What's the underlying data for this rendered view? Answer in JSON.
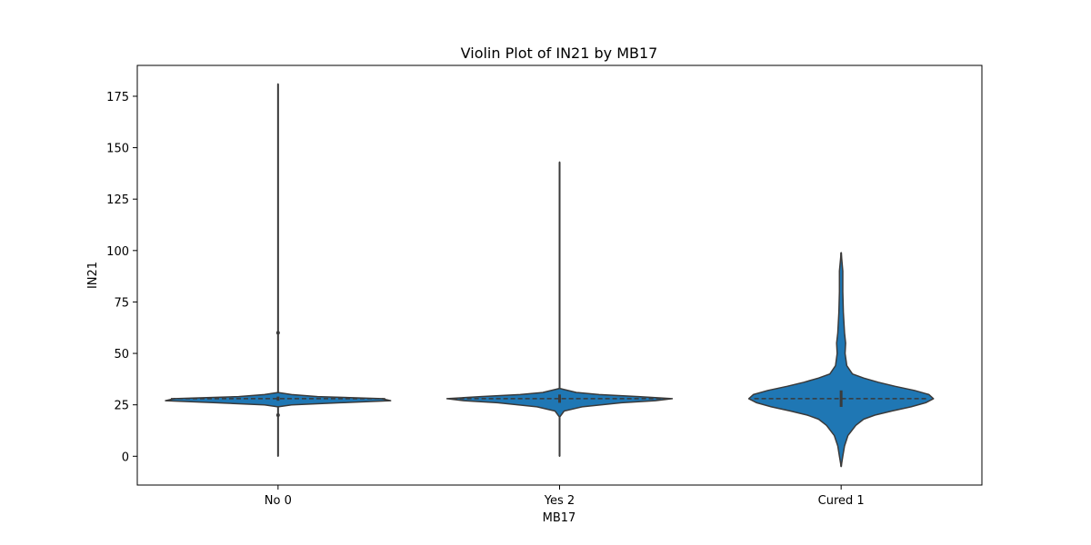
{
  "chart_data": {
    "type": "violin",
    "title": "Violin Plot of IN21 by MB17",
    "xlabel": "MB17",
    "ylabel": "IN21",
    "categories": [
      "No 0",
      "Yes 2",
      "Cured 1"
    ],
    "y_ticks": [
      0,
      25,
      50,
      75,
      100,
      125,
      150,
      175
    ],
    "ylim": [
      -14,
      190
    ],
    "grid": false,
    "fill_color": "#1f77b4",
    "edge_color": "#3a3a3a",
    "violins": [
      {
        "category": "No 0",
        "min": 0,
        "max": 181,
        "median": 28,
        "box": [
          27,
          29
        ],
        "outliers_shown": [
          20,
          60
        ],
        "density_profile": [
          [
            0,
            0.0
          ],
          [
            20,
            0.0
          ],
          [
            24,
            0.0
          ],
          [
            25,
            0.12
          ],
          [
            26,
            0.55
          ],
          [
            27,
            1.0
          ],
          [
            28,
            0.92
          ],
          [
            29,
            0.35
          ],
          [
            30,
            0.12
          ],
          [
            31,
            0.0
          ],
          [
            60,
            0.0
          ],
          [
            181,
            0.0
          ]
        ]
      },
      {
        "category": "Yes 2",
        "min": 0,
        "max": 143,
        "median": 28,
        "box": [
          26,
          30
        ],
        "outliers_shown": [],
        "density_profile": [
          [
            0,
            0.0
          ],
          [
            19,
            0.0
          ],
          [
            22,
            0.04
          ],
          [
            24,
            0.2
          ],
          [
            26,
            0.55
          ],
          [
            27,
            0.85
          ],
          [
            28,
            1.0
          ],
          [
            29,
            0.7
          ],
          [
            30,
            0.35
          ],
          [
            31,
            0.15
          ],
          [
            33,
            0.0
          ],
          [
            143,
            0.0
          ]
        ]
      },
      {
        "category": "Cured 1",
        "min": -5,
        "max": 99,
        "median": 28,
        "box": [
          24,
          32
        ],
        "outliers_shown": [],
        "density_profile": [
          [
            -5,
            0.0
          ],
          [
            0,
            0.015
          ],
          [
            5,
            0.03
          ],
          [
            10,
            0.06
          ],
          [
            15,
            0.13
          ],
          [
            18,
            0.2
          ],
          [
            20,
            0.3
          ],
          [
            22,
            0.45
          ],
          [
            24,
            0.62
          ],
          [
            26,
            0.75
          ],
          [
            28,
            0.82
          ],
          [
            30,
            0.78
          ],
          [
            32,
            0.65
          ],
          [
            34,
            0.48
          ],
          [
            36,
            0.33
          ],
          [
            38,
            0.2
          ],
          [
            40,
            0.1
          ],
          [
            44,
            0.05
          ],
          [
            50,
            0.035
          ],
          [
            55,
            0.04
          ],
          [
            60,
            0.03
          ],
          [
            70,
            0.02
          ],
          [
            80,
            0.015
          ],
          [
            90,
            0.015
          ],
          [
            99,
            0.0
          ]
        ]
      }
    ]
  }
}
